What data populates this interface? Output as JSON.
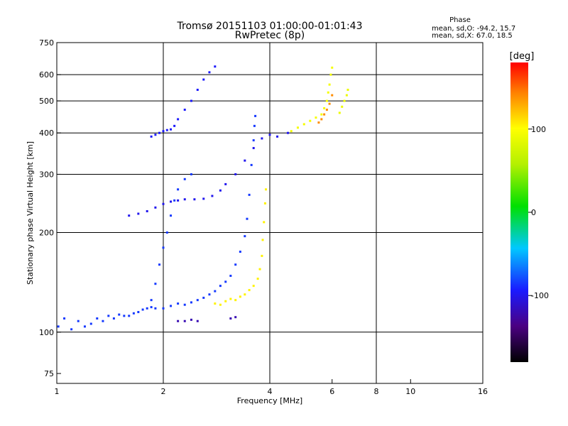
{
  "header": {
    "title": "Tromsø 20151103 01:00:00-01:01:43",
    "subtitle": "RwPretec (8p)",
    "stats_heading": "Phase",
    "stats_o": "mean, sd,O:  -94.2, 15.7",
    "stats_x": "mean, sd,X:  67.0, 18.5"
  },
  "chart_data": {
    "type": "scatter",
    "xlabel": "Frequency [MHz]",
    "ylabel": "Stationary phase Virtual Height [km]",
    "x_scale": "log",
    "y_scale": "log",
    "xlim": [
      1,
      16
    ],
    "ylim": [
      70,
      750
    ],
    "xticks": [
      1,
      2,
      4,
      6,
      8,
      10,
      16
    ],
    "xtick_labels": [
      "1",
      "2",
      "4",
      "6",
      "8",
      "10",
      "16"
    ],
    "yticks": [
      75,
      100,
      200,
      300,
      400,
      500,
      600,
      750
    ],
    "ytick_labels": [
      "75",
      "100",
      "200",
      "300",
      "400",
      "500",
      "600",
      "750"
    ],
    "grid_x": [
      1,
      2,
      4,
      8,
      16
    ],
    "grid_y": [
      100,
      200,
      300,
      400,
      500,
      600
    ],
    "colorbar": {
      "label": "[deg]",
      "range": [
        -180,
        180
      ],
      "ticks": [
        100,
        0,
        -100
      ],
      "tick_labels": [
        "100",
        "0",
        "-100"
      ]
    },
    "traces": [
      {
        "name": "",
        "phase_deg": -85,
        "points": [
          [
            1.01,
            104
          ],
          [
            1.05,
            110
          ],
          [
            1.1,
            102
          ],
          [
            1.15,
            108
          ],
          [
            1.2,
            104
          ],
          [
            1.25,
            106
          ],
          [
            1.3,
            110
          ],
          [
            1.35,
            108
          ],
          [
            1.4,
            112
          ],
          [
            1.45,
            110
          ],
          [
            1.5,
            113
          ],
          [
            1.55,
            112
          ],
          [
            1.6,
            112
          ],
          [
            1.65,
            114
          ],
          [
            1.7,
            115
          ],
          [
            1.75,
            117
          ],
          [
            1.8,
            118
          ],
          [
            1.85,
            119
          ],
          [
            1.9,
            118
          ],
          [
            2.0,
            118
          ],
          [
            2.1,
            120
          ],
          [
            2.2,
            122
          ],
          [
            2.3,
            121
          ],
          [
            2.4,
            123
          ],
          [
            2.5,
            125
          ],
          [
            2.6,
            127
          ],
          [
            2.7,
            130
          ],
          [
            2.8,
            133
          ],
          [
            2.9,
            138
          ],
          [
            3.0,
            142
          ],
          [
            3.1,
            148
          ],
          [
            3.2,
            160
          ],
          [
            3.3,
            175
          ],
          [
            3.4,
            195
          ],
          [
            3.45,
            220
          ],
          [
            3.5,
            260
          ],
          [
            3.55,
            320
          ],
          [
            3.6,
            380
          ],
          [
            3.62,
            420
          ],
          [
            3.64,
            450
          ]
        ]
      },
      {
        "name": "",
        "phase_deg": 105,
        "points": [
          [
            2.8,
            122
          ],
          [
            2.9,
            121
          ],
          [
            3.0,
            124
          ],
          [
            3.1,
            126
          ],
          [
            3.2,
            125
          ],
          [
            3.3,
            128
          ],
          [
            3.4,
            130
          ],
          [
            3.5,
            134
          ],
          [
            3.6,
            138
          ],
          [
            3.7,
            145
          ],
          [
            3.75,
            155
          ],
          [
            3.8,
            170
          ],
          [
            3.82,
            190
          ],
          [
            3.85,
            215
          ],
          [
            3.88,
            245
          ],
          [
            3.9,
            270
          ]
        ]
      },
      {
        "name": "",
        "phase_deg": -100,
        "points": [
          [
            1.6,
            225
          ],
          [
            1.7,
            228
          ],
          [
            1.8,
            232
          ],
          [
            1.9,
            238
          ],
          [
            2.0,
            244
          ],
          [
            2.1,
            248
          ],
          [
            2.2,
            250
          ],
          [
            2.3,
            252
          ],
          [
            2.45,
            252
          ],
          [
            2.6,
            253
          ],
          [
            2.75,
            258
          ],
          [
            2.9,
            268
          ],
          [
            3.0,
            280
          ],
          [
            3.2,
            300
          ],
          [
            3.4,
            330
          ],
          [
            3.6,
            360
          ],
          [
            3.8,
            385
          ],
          [
            4.0,
            395
          ],
          [
            4.2,
            390
          ],
          [
            4.5,
            400
          ]
        ]
      },
      {
        "name": "",
        "phase_deg": -95,
        "points": [
          [
            1.85,
            390
          ],
          [
            1.9,
            395
          ],
          [
            1.95,
            400
          ],
          [
            2.0,
            405
          ],
          [
            2.05,
            408
          ],
          [
            2.1,
            410
          ],
          [
            2.15,
            420
          ],
          [
            2.2,
            440
          ],
          [
            2.3,
            470
          ],
          [
            2.4,
            500
          ],
          [
            2.5,
            540
          ],
          [
            2.6,
            580
          ],
          [
            2.7,
            610
          ],
          [
            2.8,
            635
          ]
        ]
      },
      {
        "name": "",
        "phase_deg": -85,
        "points": [
          [
            1.85,
            125
          ],
          [
            1.9,
            140
          ],
          [
            1.95,
            160
          ],
          [
            2.0,
            180
          ],
          [
            2.05,
            200
          ],
          [
            2.1,
            225
          ],
          [
            2.15,
            250
          ],
          [
            2.2,
            270
          ],
          [
            2.3,
            290
          ],
          [
            2.4,
            300
          ]
        ]
      },
      {
        "name": "",
        "phase_deg": 95,
        "points": [
          [
            4.6,
            405
          ],
          [
            4.8,
            415
          ],
          [
            5.0,
            425
          ],
          [
            5.2,
            435
          ],
          [
            5.4,
            445
          ],
          [
            5.6,
            455
          ],
          [
            5.7,
            475
          ],
          [
            5.8,
            500
          ],
          [
            5.85,
            530
          ],
          [
            5.9,
            560
          ],
          [
            5.95,
            600
          ],
          [
            6.0,
            630
          ]
        ]
      },
      {
        "name": "",
        "phase_deg": 140,
        "points": [
          [
            5.5,
            430
          ],
          [
            5.6,
            440
          ],
          [
            5.7,
            455
          ],
          [
            5.8,
            470
          ],
          [
            5.9,
            490
          ],
          [
            6.0,
            520
          ]
        ]
      },
      {
        "name": "",
        "phase_deg": 90,
        "points": [
          [
            6.3,
            460
          ],
          [
            6.4,
            480
          ],
          [
            6.5,
            500
          ],
          [
            6.6,
            520
          ],
          [
            6.65,
            540
          ]
        ]
      },
      {
        "name": "",
        "phase_deg": -120,
        "points": [
          [
            2.2,
            108
          ],
          [
            2.3,
            108
          ],
          [
            2.4,
            109
          ],
          [
            2.5,
            108
          ],
          [
            3.1,
            110
          ],
          [
            3.2,
            111
          ]
        ]
      }
    ]
  }
}
